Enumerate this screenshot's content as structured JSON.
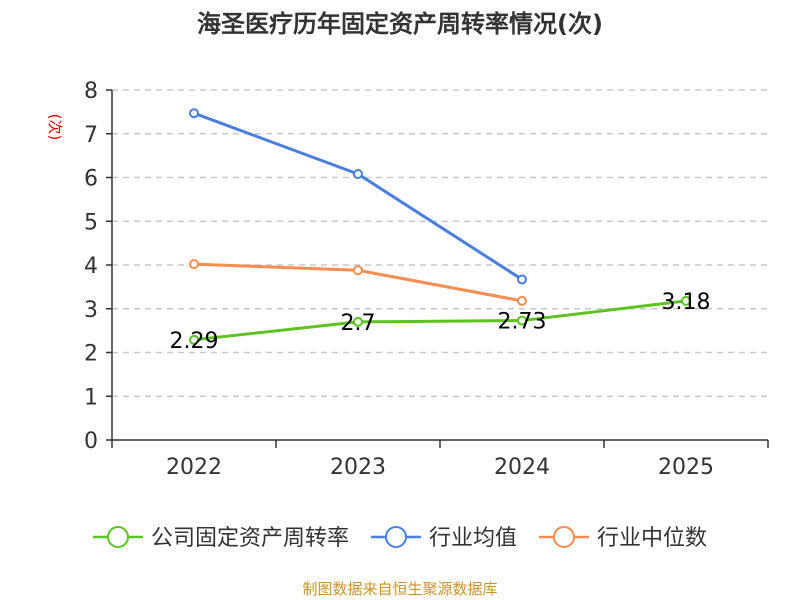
{
  "chart_data": {
    "type": "line",
    "title": "海圣医疗历年固定资产周转率情况(次)",
    "ylabel": "(次)",
    "xlabel": "",
    "categories": [
      "2022",
      "2023",
      "2024",
      "2025"
    ],
    "ylim": [
      0,
      8
    ],
    "yticks": [
      0,
      1,
      2,
      3,
      4,
      5,
      6,
      7,
      8
    ],
    "grid": true,
    "legend_position": "bottom",
    "series": [
      {
        "name": "公司固定资产周转率",
        "color": "#5cc323",
        "values": [
          2.29,
          2.7,
          2.73,
          3.18
        ],
        "labels": [
          "2.29",
          "2.7",
          "2.73",
          "3.18"
        ],
        "show_labels": true
      },
      {
        "name": "行业均值",
        "color": "#4a7fdc",
        "values": [
          7.47,
          6.08,
          3.67,
          null
        ],
        "show_labels": false
      },
      {
        "name": "行业中位数",
        "color": "#f98c53",
        "values": [
          4.02,
          3.88,
          3.18,
          null
        ],
        "show_labels": false
      }
    ],
    "source": "制图数据来自恒生聚源数据库"
  }
}
